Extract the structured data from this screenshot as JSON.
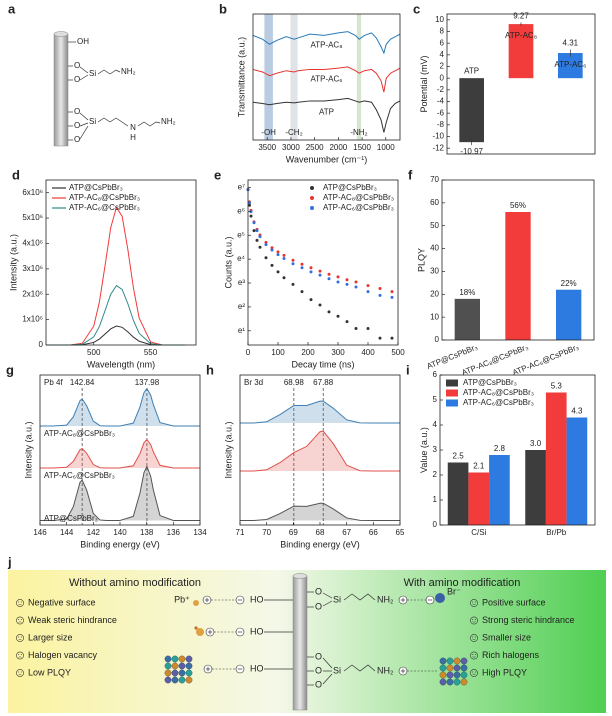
{
  "structure": {
    "label": "a",
    "oh": "OH",
    "o": "O",
    "si": "Si",
    "nh2": "NH₂",
    "n": "N",
    "h": "H"
  },
  "chart_data": [
    {
      "type": "line",
      "label": "b",
      "xlabel": "Wavenumber (cm⁻¹)",
      "ylabel": "Transmittance (a.u.)",
      "x": [
        3800,
        3600,
        3450,
        3300,
        3100,
        2930,
        2850,
        2600,
        2300,
        2000,
        1800,
        1640,
        1560,
        1450,
        1300,
        1200,
        1100,
        1040,
        990,
        900,
        800,
        700
      ],
      "xlim": [
        3800,
        700
      ],
      "xticks": [
        3500,
        3000,
        2500,
        2000,
        1500,
        1000
      ],
      "ylim": [
        0,
        10
      ],
      "legend": "inline",
      "bands": [
        {
          "label": "-OH",
          "range": [
            3560,
            3380
          ],
          "color": "#9db6d4"
        },
        {
          "label": "-CH₂",
          "range": [
            3010,
            2860
          ],
          "color": "#d3d7de"
        },
        {
          "label": "-NH₂",
          "range": [
            1610,
            1520
          ],
          "color": "#c4dab8"
        }
      ],
      "series": [
        {
          "name": "ATP-AC₈",
          "color": "#2a7ab8",
          "values": [
            8.3,
            8.0,
            7.6,
            7.9,
            8.2,
            8.0,
            8.1,
            8.4,
            8.3,
            8.5,
            8.6,
            8.3,
            8.0,
            8.3,
            8.5,
            8.1,
            7.4,
            6.9,
            7.6,
            8.0,
            8.2,
            8.4
          ]
        },
        {
          "name": "ATP-AC₆",
          "color": "#e8332f",
          "values": [
            5.6,
            5.4,
            5.1,
            5.3,
            5.5,
            5.4,
            5.5,
            5.6,
            5.6,
            5.7,
            5.8,
            5.5,
            5.3,
            5.5,
            5.6,
            5.3,
            4.7,
            3.8,
            4.9,
            5.3,
            5.5,
            5.7
          ]
        },
        {
          "name": "ATP",
          "color": "#333333",
          "values": [
            3.0,
            2.9,
            2.8,
            2.9,
            3.0,
            2.95,
            3.0,
            3.1,
            3.1,
            3.2,
            3.3,
            3.1,
            3.0,
            3.1,
            3.0,
            2.4,
            1.6,
            0.6,
            1.4,
            2.5,
            2.9,
            3.1
          ]
        }
      ]
    },
    {
      "type": "bar",
      "label": "c",
      "ylabel": "Potential (mV)",
      "categories": [
        "ATP",
        "ATP-AC₈",
        "ATP-AC₆"
      ],
      "values": [
        -10.97,
        9.27,
        4.31
      ],
      "errors": [
        0.5,
        0.3,
        0.6
      ],
      "colors": [
        "#3d3d3d",
        "#f23b3b",
        "#2d7ae0"
      ],
      "ylim": [
        -13,
        11
      ],
      "yticks": [
        -12,
        -10,
        -8,
        -6,
        -4,
        -2,
        0,
        2,
        4,
        6,
        8,
        10
      ],
      "category_labels": "inside"
    },
    {
      "type": "line",
      "label": "d",
      "xlabel": "Wavelength (nm)",
      "ylabel": "Intensity (a.u.)",
      "x": [
        460,
        480,
        490,
        500,
        505,
        510,
        515,
        520,
        525,
        530,
        535,
        540,
        550,
        560,
        580
      ],
      "xlim": [
        458,
        590
      ],
      "xticks": [
        500,
        550
      ],
      "ylim": [
        0,
        6500000
      ],
      "yticks": [
        0,
        {
          "value": 1000000,
          "label": "1x10⁶"
        },
        {
          "value": 2000000,
          "label": "2x10⁶"
        },
        {
          "value": 3000000,
          "label": "3x10⁶"
        },
        {
          "value": 4000000,
          "label": "4x10⁶"
        },
        {
          "value": 5000000,
          "label": "5x10⁶"
        },
        {
          "value": 6000000,
          "label": "6x10⁶"
        }
      ],
      "legend": "upper left",
      "series": [
        {
          "name": "ATP@CsPbBr₃",
          "color": "#333333",
          "values": [
            0,
            0,
            10000,
            101000,
            234000,
            433000,
            637000,
            746000,
            698000,
            519000,
            308000,
            146000,
            17000,
            1000,
            0
          ]
        },
        {
          "name": "ATP-AC₈@CsPbBr₃",
          "color": "#f03a3a",
          "values": [
            0,
            3000,
            70000,
            740000,
            1700000,
            3140000,
            4630000,
            5420000,
            5070000,
            3770000,
            2230000,
            1060000,
            120000,
            5000,
            0
          ]
        },
        {
          "name": "ATP-AC₆@CsPbBr₃",
          "color": "#2e8b8b",
          "values": [
            0,
            1000,
            30000,
            320000,
            730000,
            1360000,
            2000000,
            2340000,
            2190000,
            1630000,
            960000,
            460000,
            52000,
            2000,
            0
          ]
        }
      ]
    },
    {
      "type": "scatter",
      "label": "e",
      "xlabel": "Decay time (ns)",
      "ylabel": "Counts (a.u.)",
      "yscale": "log",
      "x": [
        0,
        5,
        10,
        20,
        30,
        40,
        60,
        80,
        100,
        120,
        150,
        180,
        210,
        240,
        270,
        300,
        330,
        360,
        400,
        440,
        480
      ],
      "xlim": [
        0,
        500
      ],
      "xticks": [
        0,
        100,
        200,
        300,
        400,
        500
      ],
      "ylim": [
        1.5,
        1500
      ],
      "yticks": [
        {
          "value": 2.718,
          "label": "e¹"
        },
        {
          "value": 7.389,
          "label": "e²"
        },
        {
          "value": 20.09,
          "label": "e³"
        },
        {
          "value": 54.6,
          "label": "e⁴"
        },
        {
          "value": 148.4,
          "label": "e⁵"
        },
        {
          "value": 403.4,
          "label": "e⁶"
        },
        {
          "value": 1096.6,
          "label": "e⁷"
        }
      ],
      "legend": "upper right",
      "series": [
        {
          "name": "ATP@CsPbBr₃",
          "color": "#333333",
          "values": [
            1000,
            520,
            330,
            180,
            120,
            90,
            58,
            42,
            32,
            25,
            19,
            14,
            10,
            8,
            6,
            5,
            4,
            3,
            3,
            2,
            2
          ]
        },
        {
          "name": "ATP-AC₈@CsPbBr₃",
          "color": "#e8332f",
          "values": [
            1000,
            600,
            420,
            260,
            190,
            150,
            110,
            88,
            74,
            64,
            52,
            44,
            38,
            33,
            29,
            26,
            23,
            21,
            18,
            16,
            14
          ]
        },
        {
          "name": "ATP-AC₆@CsPbBr₃",
          "color": "#2f6fe0",
          "values": [
            1000,
            580,
            400,
            250,
            180,
            140,
            100,
            80,
            66,
            56,
            45,
            38,
            32,
            28,
            24,
            21,
            19,
            17,
            14,
            12,
            11
          ]
        }
      ]
    },
    {
      "type": "bar",
      "label": "f",
      "ylabel": "PLQY",
      "categories": [
        "ATP@CsPbBr₃",
        "ATP-AC₈@CsPbBr₃",
        "ATP-AC₆@CsPbBr₃"
      ],
      "values": [
        18,
        56,
        22
      ],
      "value_labels": [
        "18%",
        "56%",
        "22%"
      ],
      "colors": [
        "#505050",
        "#f23b3b",
        "#2d7ae0"
      ],
      "ylim": [
        0,
        70
      ],
      "yticks": [
        0,
        10,
        20,
        30,
        40,
        50,
        60,
        70
      ],
      "category_labels": "rotated"
    },
    {
      "type": "line",
      "label": "g",
      "title": "Pb 4f",
      "xlabel": "Binding energy (eV)",
      "ylabel": "Intensity (a.u.)",
      "x": [
        146,
        145,
        144,
        143.5,
        143,
        142.84,
        142.5,
        142,
        141.5,
        141,
        140,
        139,
        138.5,
        138.2,
        137.98,
        137.7,
        137.5,
        137,
        136,
        135,
        134
      ],
      "xlim": [
        146,
        134
      ],
      "xticks": [
        146,
        144,
        142,
        140,
        138,
        136,
        134
      ],
      "ylim": [
        0,
        10
      ],
      "peaks": [
        142.84,
        137.98
      ],
      "legend": "inline",
      "fill": true,
      "series": [
        {
          "name": "ATP-AC₈@CsPbBr₃",
          "color": "#3f7fb3",
          "values": [
            6.6,
            6.6,
            6.66,
            7.21,
            8.29,
            8.4,
            7.95,
            6.92,
            6.62,
            6.6,
            6.6,
            6.79,
            7.88,
            8.83,
            9.1,
            8.65,
            8.03,
            6.83,
            6.6,
            6.6,
            6.6
          ]
        },
        {
          "name": "ATP-AC₆@CsPbBr₃",
          "color": "#e0504a",
          "values": [
            3.8,
            3.8,
            3.85,
            4.24,
            5.02,
            5.1,
            4.78,
            4.03,
            3.82,
            3.8,
            3.8,
            3.95,
            4.77,
            5.49,
            5.7,
            5.36,
            4.88,
            3.98,
            3.8,
            3.8,
            3.8
          ]
        },
        {
          "name": "ATP@CsPbBr₃",
          "color": "#555555",
          "values": [
            0.3,
            0.3,
            0.4,
            1.22,
            2.84,
            3.0,
            2.33,
            0.77,
            0.33,
            0.3,
            0.3,
            0.58,
            2.14,
            3.5,
            3.9,
            3.25,
            2.35,
            0.63,
            0.3,
            0.3,
            0.3
          ]
        }
      ]
    },
    {
      "type": "line",
      "label": "h",
      "title": "Br 3d",
      "xlabel": "Binding energy (eV)",
      "ylabel": "Intensity (a.u.)",
      "x": [
        71,
        70.5,
        70,
        69.5,
        68.98,
        68.5,
        68,
        67.88,
        67.5,
        67,
        66.5,
        66,
        65.5,
        65
      ],
      "xlim": [
        71,
        65
      ],
      "xticks": [
        71,
        70,
        69,
        68,
        67,
        66,
        65
      ],
      "ylim": [
        0,
        10
      ],
      "peaks": [
        68.98,
        67.88
      ],
      "fill": true,
      "series": [
        {
          "color": "#3f7fb3",
          "values": [
            6.8,
            6.8,
            6.88,
            7.36,
            7.97,
            7.97,
            8.26,
            8.26,
            7.78,
            7.01,
            6.81,
            6.8,
            6.8,
            6.8
          ]
        },
        {
          "color": "#e0504a",
          "values": [
            3.6,
            3.6,
            3.68,
            4.16,
            4.83,
            5.24,
            6.22,
            6.26,
            5.42,
            3.99,
            3.62,
            3.6,
            3.6,
            3.6
          ]
        },
        {
          "color": "#555555",
          "values": [
            0.3,
            0.3,
            0.37,
            0.76,
            1.26,
            1.24,
            1.45,
            1.45,
            1.07,
            0.47,
            0.31,
            0.3,
            0.3,
            0.3
          ]
        }
      ]
    },
    {
      "type": "bar",
      "label": "i",
      "ylabel": "Value (a.u.)",
      "categories": [
        "C/Si",
        "Br/Pb"
      ],
      "ylim": [
        0,
        6
      ],
      "yticks": [
        0,
        1,
        2,
        3,
        4,
        5,
        6
      ],
      "legend": "upper left",
      "series": [
        {
          "name": "ATP@CsPbBr₃",
          "color": "#3d3d3d",
          "values": [
            2.5,
            3.0
          ],
          "value_labels": [
            "2.5",
            "3.0"
          ]
        },
        {
          "name": "ATP-AC₈@CsPbBr₃",
          "color": "#f23b3b",
          "values": [
            2.1,
            5.3
          ]
        },
        {
          "name": "ATP-AC₆@CsPbBr₃",
          "color": "#2d7ae0",
          "values": [
            2.8,
            4.3
          ]
        }
      ]
    }
  ],
  "schematic": {
    "label": "j",
    "left_title": "Without amino modification",
    "right_title": "With amino modification",
    "left_items": [
      "Negative surface",
      "Weak steric hindrance",
      "Larger size",
      "Halogen vacancy",
      "Low PLQY"
    ],
    "right_items": [
      "Positive surface",
      "Strong steric hindrance",
      "Smaller size",
      "Rich halogens",
      "High PLQY"
    ],
    "pb": "Pb⁺",
    "br": "Br⁻",
    "ho": "HO",
    "o": "O",
    "si": "Si",
    "nh2": "NH₂"
  }
}
